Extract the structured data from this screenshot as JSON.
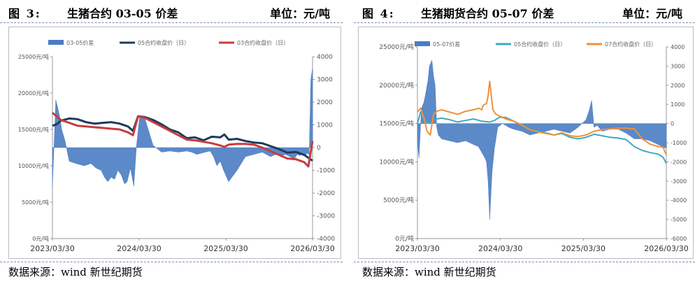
{
  "colors": {
    "spread": "#4a7cc2",
    "c05_dark": "#1f3a5f",
    "c03_red": "#c83c3c",
    "spread_right": "#4a7cc2",
    "c05_teal": "#3fa9c2",
    "c07_orange": "#f0903a"
  },
  "left": {
    "fig_label": "图  3:",
    "title": "生猪合约 03-05 价差",
    "unit": "单位：元/吨",
    "source": "数据来源：wind  新世纪期货"
  },
  "right": {
    "fig_label": "图  4:",
    "title": "生猪期货合约 05-07 价差",
    "unit": "单位：元/吨",
    "source": "数据来源：wind  新世纪期货"
  },
  "chart_data": [
    {
      "type": "area+line",
      "title": "生猪合约 03-05 价差",
      "legend": [
        "03-05价差",
        "05合约收盘价（日）",
        "03合约收盘价（日）"
      ],
      "x_ticks": [
        "2023/03/30",
        "2024/03/30",
        "2025/03/30",
        "2026/03/30"
      ],
      "y_left": {
        "min": 0,
        "max": 25000,
        "ticks": [
          "0元/吨",
          "5000元/吨",
          "10000元/吨",
          "15000元/吨",
          "20000元/吨",
          "25000元/吨"
        ]
      },
      "y_right": {
        "min": -4000,
        "max": 4000,
        "ticks": [
          "-4000",
          "-3000",
          "-2000",
          "-1000",
          "0",
          "1000",
          "2000",
          "3000",
          "4000"
        ]
      },
      "x_range": [
        2023.2,
        2026.3
      ],
      "series": [
        {
          "name": "03-05价差",
          "axis": "right",
          "kind": "area",
          "x": [
            2023.2,
            2023.24,
            2023.26,
            2023.29,
            2023.31,
            2023.35,
            2023.4,
            2023.48,
            2023.58,
            2023.66,
            2023.72,
            2023.78,
            2023.82,
            2023.86,
            2023.9,
            2023.94,
            2023.98,
            2024.02,
            2024.06,
            2024.09,
            2024.13,
            2024.17,
            2024.2,
            2024.24,
            2024.3,
            2024.4,
            2024.5,
            2024.6,
            2024.7,
            2024.8,
            2024.86,
            2024.92,
            2024.97,
            2025.02,
            2025.08,
            2025.12,
            2025.16,
            2025.2,
            2025.24,
            2025.3,
            2025.4,
            2025.5,
            2025.6,
            2025.7,
            2025.8,
            2025.86,
            2025.92,
            2025.98,
            2026.03,
            2026.08,
            2026.12,
            2026.15,
            2026.18,
            2026.22,
            2026.24,
            2026.26,
            2026.28,
            2026.3
          ],
          "values": [
            -1700,
            2100,
            1800,
            1300,
            800,
            300,
            -600,
            -700,
            -800,
            -700,
            -900,
            -1000,
            -1300,
            -1500,
            -1300,
            -1400,
            -1000,
            -1200,
            -1600,
            -1500,
            -900,
            -1700,
            0,
            1400,
            1300,
            100,
            -200,
            -150,
            -200,
            -150,
            -200,
            -300,
            -250,
            -200,
            -150,
            -400,
            -800,
            -600,
            -1000,
            -1500,
            -1000,
            -400,
            -300,
            -200,
            -400,
            -300,
            -350,
            -300,
            -400,
            -500,
            -300,
            -350,
            -250,
            -300,
            -250,
            -300,
            3000,
            3500
          ]
        },
        {
          "name": "05合约收盘价（日）",
          "axis": "left",
          "kind": "line",
          "x": [
            2023.2,
            2023.25,
            2023.3,
            2023.4,
            2023.5,
            2023.6,
            2023.7,
            2023.8,
            2023.9,
            2024.0,
            2024.1,
            2024.16,
            2024.22,
            2024.3,
            2024.4,
            2024.5,
            2024.6,
            2024.7,
            2024.8,
            2024.9,
            2025.0,
            2025.1,
            2025.2,
            2025.25,
            2025.3,
            2025.4,
            2025.5,
            2025.6,
            2025.7,
            2025.8,
            2025.9,
            2026.0,
            2026.1,
            2026.2,
            2026.3
          ],
          "values": [
            15500,
            15700,
            16200,
            16500,
            16400,
            16000,
            15800,
            15900,
            16000,
            15800,
            15400,
            14800,
            16800,
            16700,
            16300,
            15700,
            15000,
            14600,
            13800,
            13900,
            13500,
            14000,
            13900,
            14300,
            13600,
            13700,
            13400,
            13200,
            13100,
            12700,
            12300,
            11800,
            11900,
            11500,
            10700
          ]
        },
        {
          "name": "03合约收盘价（日）",
          "axis": "left",
          "kind": "line",
          "x": [
            2023.2,
            2023.25,
            2023.3,
            2023.4,
            2023.5,
            2023.6,
            2023.7,
            2023.8,
            2023.9,
            2024.0,
            2024.1,
            2024.16,
            2024.22,
            2024.3,
            2024.4,
            2024.5,
            2024.6,
            2024.7,
            2024.8,
            2024.9,
            2025.0,
            2025.1,
            2025.2,
            2025.25,
            2025.3,
            2025.4,
            2025.5,
            2025.6,
            2025.7,
            2025.8,
            2025.9,
            2026.0,
            2026.1,
            2026.2,
            2026.25,
            2026.3
          ],
          "values": [
            17300,
            16800,
            16300,
            15900,
            15500,
            15400,
            15300,
            15200,
            15100,
            15000,
            14600,
            14200,
            16800,
            16600,
            16000,
            15400,
            14800,
            14200,
            13600,
            13500,
            13300,
            13100,
            12800,
            12600,
            12900,
            13000,
            13000,
            12900,
            12500,
            12000,
            11500,
            11000,
            10900,
            10500,
            9900,
            13400
          ]
        }
      ]
    },
    {
      "type": "area+line",
      "title": "生猪期货合约 05-07 价差",
      "legend": [
        "05-07价差",
        "05合约收盘价（日）",
        "07合约收盘价（日）"
      ],
      "x_ticks": [
        "2023/03/30",
        "2024/03/30",
        "2025/03/30",
        "2026/03/30"
      ],
      "y_left": {
        "min": 0,
        "max": 25000,
        "ticks": [
          "0元/吨",
          "5000元/吨",
          "10000元/吨",
          "15000元/吨",
          "20000元/吨",
          "25000元/吨"
        ]
      },
      "y_right": {
        "min": -6000,
        "max": 4000,
        "ticks": [
          "-6000",
          "-5000",
          "-4000",
          "-3000",
          "-2000",
          "-1000",
          "0",
          "1000",
          "2000",
          "3000",
          "4000"
        ]
      },
      "x_range": [
        2023.2,
        2026.3
      ],
      "series": [
        {
          "name": "05-07价差",
          "axis": "right",
          "kind": "area",
          "x": [
            2023.2,
            2023.22,
            2023.25,
            2023.28,
            2023.3,
            2023.33,
            2023.35,
            2023.38,
            2023.4,
            2023.42,
            2023.44,
            2023.46,
            2023.5,
            2023.6,
            2023.7,
            2023.8,
            2023.9,
            2023.96,
            2024.0,
            2024.04,
            2024.06,
            2024.08,
            2024.1,
            2024.13,
            2024.16,
            2024.2,
            2024.26,
            2024.34,
            2024.4,
            2024.5,
            2024.6,
            2024.7,
            2024.8,
            2024.9,
            2025.0,
            2025.1,
            2025.2,
            2025.3,
            2025.34,
            2025.37,
            2025.4,
            2025.44,
            2025.5,
            2025.6,
            2025.7,
            2025.8,
            2025.9,
            2026.0,
            2026.1,
            2026.2,
            2026.3
          ],
          "values": [
            -1000,
            -1800,
            800,
            1100,
            1500,
            2200,
            3000,
            3300,
            2500,
            2000,
            -200,
            -600,
            -800,
            -900,
            -1000,
            -900,
            -1100,
            -1200,
            -1500,
            -1800,
            -2000,
            -3000,
            -5000,
            -2500,
            -1300,
            -200,
            0,
            -200,
            -300,
            -400,
            -600,
            -500,
            -400,
            -300,
            -400,
            -500,
            -200,
            200,
            700,
            1200,
            -200,
            -100,
            -400,
            -300,
            -300,
            -500,
            -800,
            -800,
            -900,
            -1100,
            -1300
          ]
        },
        {
          "name": "05合约收盘价（日）",
          "axis": "left",
          "kind": "line",
          "x": [
            2023.2,
            2023.24,
            2023.28,
            2023.32,
            2023.36,
            2023.4,
            2023.44,
            2023.5,
            2023.6,
            2023.7,
            2023.8,
            2023.9,
            2024.0,
            2024.1,
            2024.16,
            2024.22,
            2024.3,
            2024.4,
            2024.5,
            2024.6,
            2024.7,
            2024.8,
            2024.9,
            2025.0,
            2025.1,
            2025.2,
            2025.3,
            2025.4,
            2025.5,
            2025.6,
            2025.7,
            2025.8,
            2025.9,
            2026.0,
            2026.1,
            2026.2,
            2026.26,
            2026.3
          ],
          "values": [
            15000,
            16500,
            15500,
            15200,
            15000,
            15500,
            15600,
            15700,
            15500,
            15200,
            15400,
            15600,
            15300,
            15200,
            15400,
            15800,
            15800,
            15300,
            14800,
            14200,
            14000,
            13800,
            13500,
            13700,
            13200,
            13000,
            13200,
            13600,
            13400,
            13200,
            13100,
            12900,
            12000,
            11500,
            11200,
            11000,
            10600,
            9800
          ]
        },
        {
          "name": "07合约收盘价（日）",
          "axis": "left",
          "kind": "line",
          "x": [
            2023.2,
            2023.24,
            2023.28,
            2023.32,
            2023.36,
            2023.4,
            2023.44,
            2023.5,
            2023.6,
            2023.7,
            2023.8,
            2023.9,
            2023.96,
            2024.0,
            2024.02,
            2024.06,
            2024.08,
            2024.1,
            2024.14,
            2024.18,
            2024.22,
            2024.3,
            2024.4,
            2024.5,
            2024.6,
            2024.7,
            2024.8,
            2024.9,
            2025.0,
            2025.1,
            2025.2,
            2025.3,
            2025.4,
            2025.5,
            2025.6,
            2025.7,
            2025.8,
            2025.9,
            2026.0,
            2026.1,
            2026.2,
            2026.26,
            2026.3
          ],
          "values": [
            16500,
            17000,
            15800,
            14000,
            13500,
            16200,
            16600,
            16800,
            16500,
            16200,
            16600,
            16800,
            17000,
            16800,
            17400,
            17600,
            18600,
            20500,
            16800,
            16200,
            16000,
            15600,
            15300,
            14800,
            14200,
            13900,
            13700,
            13500,
            13800,
            13400,
            13300,
            13500,
            14000,
            14200,
            14300,
            14400,
            14400,
            14300,
            13000,
            12300,
            12000,
            11900,
            10900
          ]
        }
      ]
    }
  ]
}
